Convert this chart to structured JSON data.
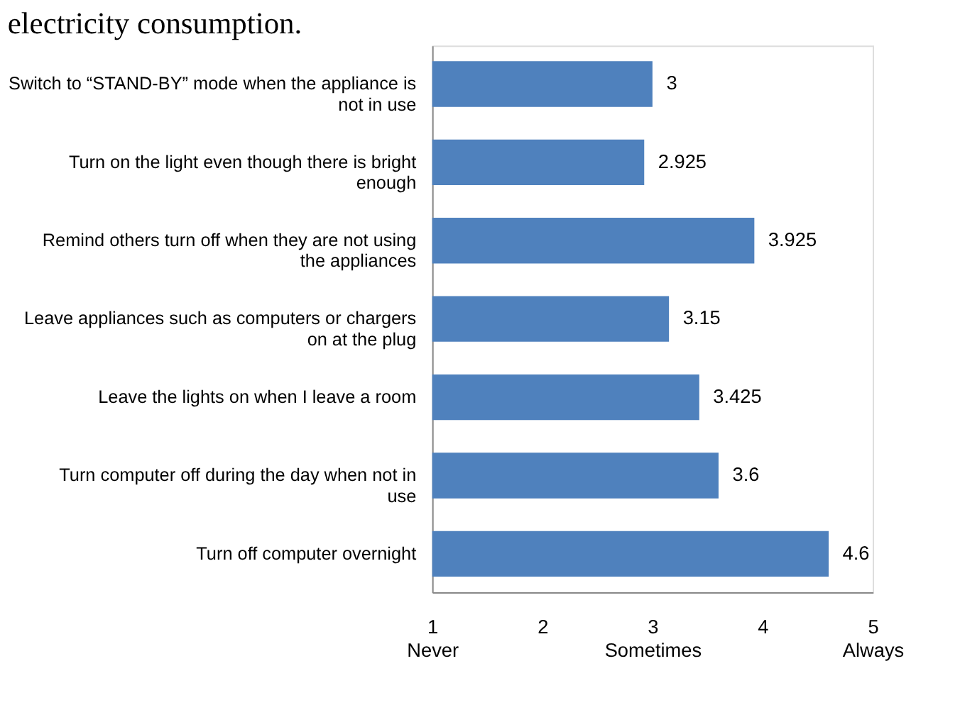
{
  "chart_data": {
    "type": "bar",
    "orientation": "horizontal",
    "title": "electricity consumption.",
    "categories": [
      "Switch to “STAND-BY” mode when the appliance is not in use",
      "Turn on the light even though there is bright enough",
      "Remind others turn off  when they are not using the appliances",
      "Leave appliances such as computers or chargers on at the plug",
      "Leave the lights on when I leave a room",
      "Turn computer off during the day when not in use",
      "Turn off  computer overnight"
    ],
    "values": [
      3,
      2.925,
      3.925,
      3.15,
      3.425,
      3.6,
      4.6
    ],
    "color": "#4f81bd",
    "data_labels": true,
    "xlim": [
      1,
      5
    ],
    "xticks": [
      {
        "value": 1,
        "label": "1\nNever"
      },
      2,
      {
        "value": 3,
        "label": "3\nSometimes"
      },
      4,
      {
        "value": 5,
        "label": "5\nAlways"
      }
    ],
    "grid": false
  }
}
